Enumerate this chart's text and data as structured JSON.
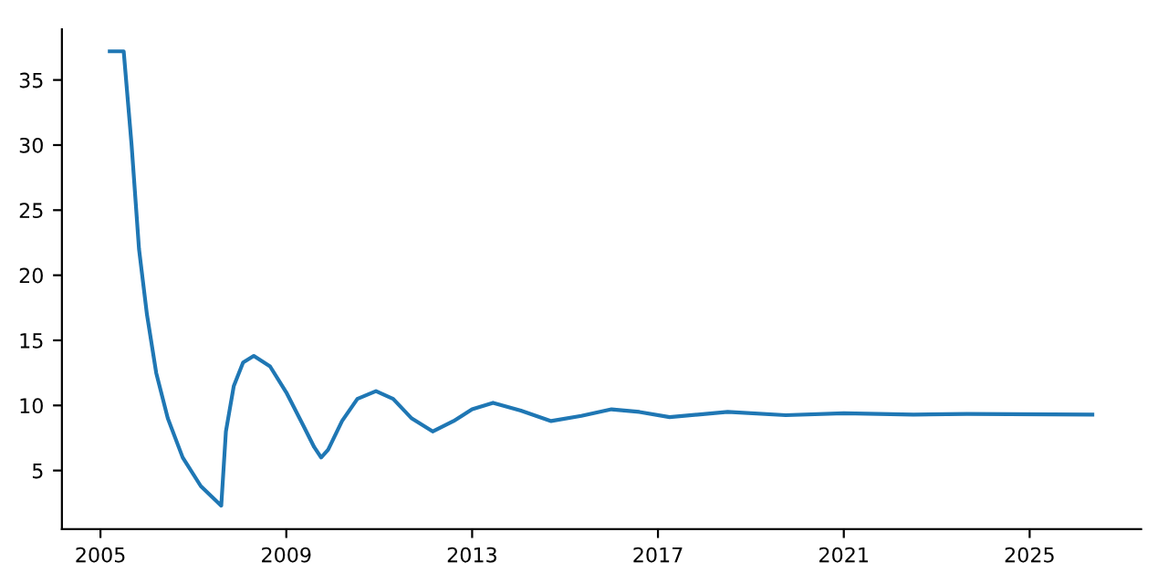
{
  "chart_data": {
    "type": "line",
    "x": [
      2005.2,
      2005.5,
      2005.67,
      2005.83,
      2006.0,
      2006.2,
      2006.45,
      2006.77,
      2007.16,
      2007.6,
      2007.7,
      2007.87,
      2008.07,
      2008.3,
      2008.65,
      2009.0,
      2009.36,
      2009.6,
      2009.75,
      2009.9,
      2010.2,
      2010.53,
      2010.93,
      2011.3,
      2011.7,
      2012.15,
      2012.6,
      2013.0,
      2013.45,
      2014.05,
      2014.7,
      2015.35,
      2016.0,
      2016.6,
      2017.25,
      2018.5,
      2019.75,
      2021.0,
      2022.5,
      2023.65,
      2026.35
    ],
    "series": [
      {
        "color": "#1f77b4",
        "values": [
          37.2,
          37.2,
          30,
          22,
          17,
          12.5,
          9,
          6,
          3.8,
          2.3,
          8,
          11.5,
          13.3,
          13.8,
          13,
          11,
          8.5,
          6.8,
          6.0,
          6.6,
          8.8,
          10.5,
          11.1,
          10.5,
          9,
          8.0,
          8.8,
          9.7,
          10.2,
          9.6,
          8.8,
          9.2,
          9.7,
          9.5,
          9.1,
          9.5,
          9.25,
          9.4,
          9.3,
          9.35,
          9.3
        ]
      }
    ],
    "xlim": [
      2004.17,
      2027.4
    ],
    "xticks": [
      2005,
      2009,
      2013,
      2017,
      2021,
      2025
    ],
    "ylim": [
      0.5,
      38.9
    ],
    "yticks": [
      5,
      10,
      15,
      20,
      25,
      30,
      35
    ],
    "grid": false,
    "legend": false
  }
}
